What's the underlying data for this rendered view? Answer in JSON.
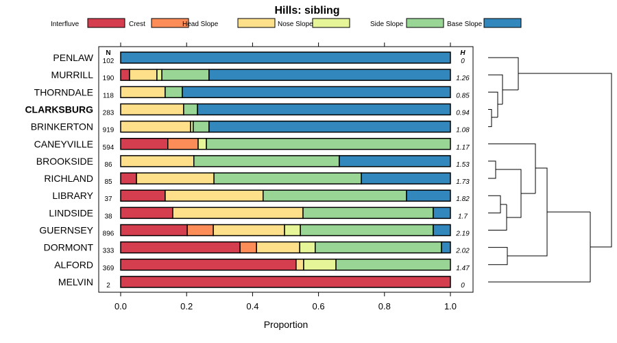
{
  "chart_data": {
    "type": "bar",
    "stacked": true,
    "orientation": "horizontal",
    "title": "Hills: sibling",
    "xlabel": "Proportion",
    "xlim": [
      0,
      1
    ],
    "xticks": [
      "0.0",
      "0.2",
      "0.4",
      "0.6",
      "0.8",
      "1.0"
    ],
    "n_header": "N",
    "h_header": "H",
    "legend": [
      {
        "name": "Interfluve",
        "color": "#D53E4F"
      },
      {
        "name": "Crest",
        "color": "#FC8D59"
      },
      {
        "name": "Head Slope",
        "color": "#FEE08B"
      },
      {
        "name": "Nose Slope",
        "color": "#E6F598"
      },
      {
        "name": "Side Slope",
        "color": "#99D594"
      },
      {
        "name": "Base Slope",
        "color": "#3288BD"
      }
    ],
    "rows": [
      {
        "label": "PENLAW",
        "n": "102",
        "h": "0",
        "values": [
          0,
          0,
          0,
          0,
          0,
          1.0
        ]
      },
      {
        "label": "MURRILL",
        "n": "190",
        "h": "1.26",
        "values": [
          0.027,
          0,
          0.083,
          0.015,
          0.143,
          0.732
        ]
      },
      {
        "label": "THORNDALE",
        "n": "118",
        "h": "0.85",
        "values": [
          0,
          0,
          0.135,
          0,
          0.052,
          0.813
        ]
      },
      {
        "label": "CLARKSBURG",
        "n": "283",
        "h": "0.94",
        "values": [
          0,
          0,
          0.191,
          0,
          0.042,
          0.767
        ],
        "bold": true
      },
      {
        "label": "BRINKERTON",
        "n": "919",
        "h": "1.08",
        "values": [
          0,
          0,
          0.212,
          0.008,
          0.048,
          0.732
        ]
      },
      {
        "label": "CANEYVILLE",
        "n": "594",
        "h": "1.17",
        "values": [
          0.143,
          0.092,
          0,
          0.025,
          0.74,
          0
        ]
      },
      {
        "label": "BROOKSIDE",
        "n": "86",
        "h": "1.53",
        "values": [
          0,
          0,
          0.222,
          0,
          0.441,
          0.337
        ]
      },
      {
        "label": "RICHLAND",
        "n": "85",
        "h": "1.73",
        "values": [
          0.048,
          0,
          0.235,
          0,
          0.447,
          0.27
        ]
      },
      {
        "label": "LIBRARY",
        "n": "37",
        "h": "1.82",
        "values": [
          0.135,
          0,
          0.297,
          0,
          0.435,
          0.133
        ]
      },
      {
        "label": "LINDSIDE",
        "n": "38",
        "h": "1.7",
        "values": [
          0.158,
          0,
          0.395,
          0,
          0.395,
          0.052
        ]
      },
      {
        "label": "GUERNSEY",
        "n": "896",
        "h": "2.19",
        "values": [
          0.202,
          0.079,
          0.216,
          0.048,
          0.403,
          0.052
        ]
      },
      {
        "label": "DORMONT",
        "n": "333",
        "h": "2.02",
        "values": [
          0.362,
          0.05,
          0.131,
          0.047,
          0.383,
          0.027
        ]
      },
      {
        "label": "ALFORD",
        "n": "369",
        "h": "1.47",
        "values": [
          0.532,
          0,
          0.023,
          0.098,
          0.347,
          0
        ]
      },
      {
        "label": "MELVIN",
        "n": "2",
        "h": "0",
        "values": [
          1.0,
          0,
          0,
          0,
          0,
          0
        ]
      }
    ]
  }
}
